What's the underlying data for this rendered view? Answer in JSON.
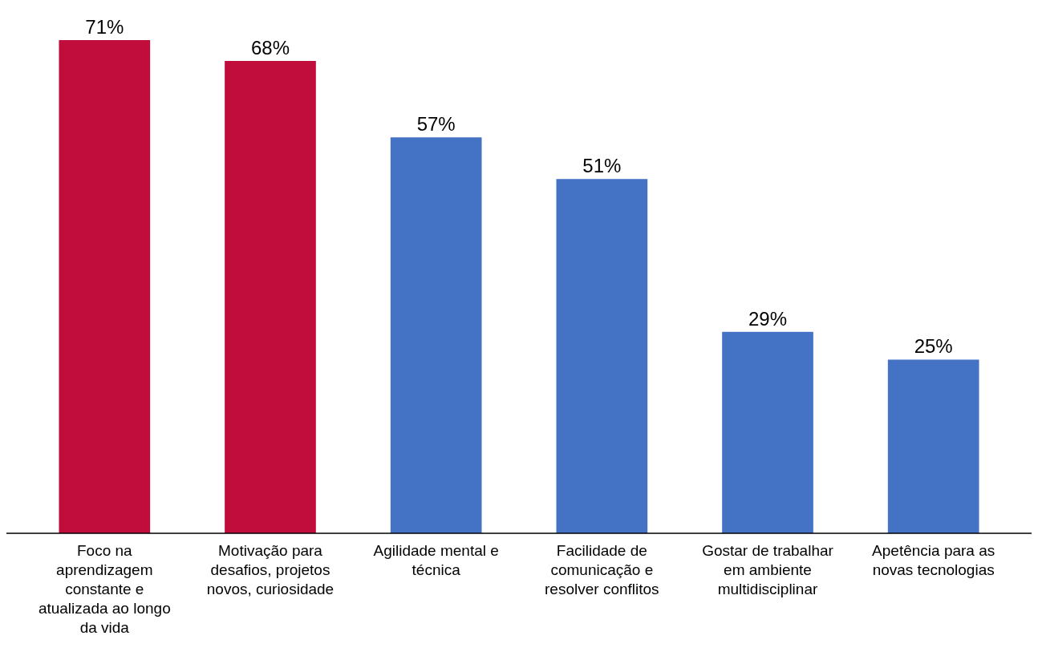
{
  "chart_data": {
    "type": "bar",
    "categories": [
      "Foco na aprendizagem constante e atualizada ao longo da vida",
      "Motivação para desafios, projetos novos, curiosidade",
      "Agilidade mental e técnica",
      "Facilidade de comunicação e resolver conflitos",
      "Gostar de trabalhar em ambiente multidisciplinar",
      "Apetência para as novas tecnologias"
    ],
    "values": [
      71,
      68,
      57,
      51,
      29,
      25
    ],
    "colors": [
      "#c00d3c",
      "#c00d3c",
      "#4472c4",
      "#4472c4",
      "#4472c4",
      "#4472c4"
    ],
    "value_labels": [
      "71%",
      "68%",
      "57%",
      "51%",
      "29%",
      "25%"
    ]
  }
}
